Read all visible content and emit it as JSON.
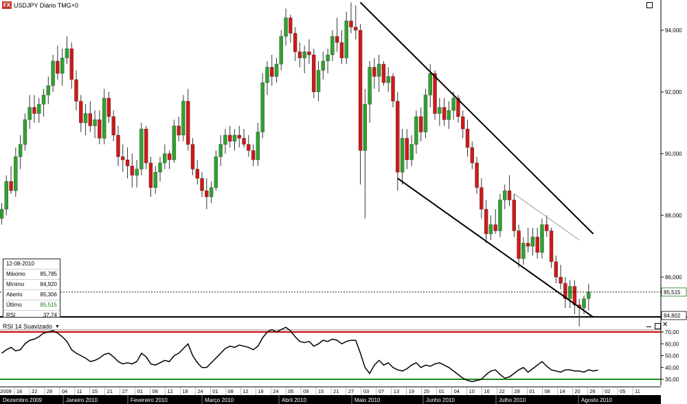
{
  "window": {
    "title": "USDJPY Diário TMG+0",
    "icon": "fx-icon",
    "maximize_icon": "maximize-icon"
  },
  "ohlc_info": {
    "date": "12-08-2010",
    "rows": [
      {
        "label": "Máximo",
        "value": "85,785",
        "color": "#000000"
      },
      {
        "label": "Mínimo",
        "value": "84,920",
        "color": "#000000"
      },
      {
        "label": "Aberto",
        "value": "85,306",
        "color": "#000000"
      },
      {
        "label": "Último",
        "value": "85,515",
        "color": "#1a7a1a"
      },
      {
        "label": "RSI",
        "value": "37,74",
        "color": "#000000"
      }
    ]
  },
  "price_axis": {
    "ticks": [
      "94,000",
      "92,000",
      "90,000",
      "88,000",
      "86,000"
    ],
    "last_price_label": "85,515",
    "low_label": "84,802"
  },
  "rsi_panel": {
    "title": "RSI 14 Suavizado",
    "ticks": [
      "70,00",
      "60,00",
      "50,00",
      "40,00",
      "30,00"
    ],
    "upper_level": 70,
    "lower_level": 30,
    "upper_color": "#cc0000",
    "lower_color": "#1a8a1a"
  },
  "time_axis": {
    "dates": [
      "2009",
      "16",
      "22",
      "29",
      "04",
      "11",
      "15",
      "21",
      "27",
      "01",
      "08",
      "12",
      "18",
      "24",
      "01",
      "08",
      "12",
      "18",
      "24",
      "05",
      "09",
      "15",
      "21",
      "27",
      "03",
      "07",
      "13",
      "19",
      "25",
      "01",
      "04",
      "10",
      "16",
      "22",
      "28",
      "01",
      "08",
      "14",
      "20",
      "26",
      "02",
      "05",
      "11"
    ],
    "months": [
      "Dezembro 2009",
      "Janeiro 2010",
      "Fevereiro 2010",
      "Março 2010",
      "Abril 2010",
      "Maio 2010",
      "Junho 2010",
      "Julho 2010",
      "Agosto 2010"
    ]
  },
  "colors": {
    "bull": "#2fa32f",
    "bear": "#d01818",
    "trendline": "#000000",
    "thin_trendline": "#999999"
  },
  "chart_data": [
    {
      "type": "candlestick",
      "title": "USDJPY Diário TMG+0",
      "x_range": [
        "2009-12-10",
        "2010-08-12"
      ],
      "y_range": [
        84.3,
        95.0
      ],
      "ohlc": [
        [
          87.9,
          88.4,
          87.7,
          88.2
        ],
        [
          88.2,
          89.3,
          88.0,
          89.1
        ],
        [
          89.1,
          89.6,
          88.7,
          88.8
        ],
        [
          88.8,
          90.2,
          88.6,
          89.9
        ],
        [
          89.9,
          90.6,
          89.5,
          90.3
        ],
        [
          90.3,
          91.3,
          90.1,
          91.1
        ],
        [
          91.1,
          91.9,
          90.8,
          91.5
        ],
        [
          91.5,
          91.9,
          91.0,
          91.3
        ],
        [
          91.3,
          91.8,
          91.0,
          91.6
        ],
        [
          91.6,
          92.1,
          91.2,
          91.9
        ],
        [
          91.9,
          92.5,
          91.6,
          92.2
        ],
        [
          92.2,
          93.2,
          92.0,
          93.0
        ],
        [
          93.0,
          93.5,
          92.4,
          92.6
        ],
        [
          92.6,
          93.4,
          92.2,
          93.1
        ],
        [
          93.1,
          93.8,
          92.9,
          93.4
        ],
        [
          93.4,
          93.6,
          92.1,
          92.4
        ],
        [
          92.4,
          92.7,
          91.4,
          91.7
        ],
        [
          91.7,
          91.9,
          90.7,
          91.0
        ],
        [
          91.0,
          91.6,
          90.6,
          91.3
        ],
        [
          91.3,
          91.7,
          90.7,
          90.9
        ],
        [
          90.9,
          91.4,
          90.5,
          91.1
        ],
        [
          91.1,
          91.4,
          90.3,
          90.5
        ],
        [
          90.5,
          92.1,
          90.3,
          91.8
        ],
        [
          91.8,
          92.0,
          91.0,
          91.2
        ],
        [
          91.2,
          91.4,
          90.4,
          90.6
        ],
        [
          90.6,
          90.9,
          89.6,
          89.9
        ],
        [
          89.9,
          90.3,
          89.4,
          89.8
        ],
        [
          89.8,
          90.2,
          89.2,
          89.6
        ],
        [
          89.6,
          90.0,
          88.9,
          89.3
        ],
        [
          89.3,
          89.8,
          88.9,
          89.5
        ],
        [
          89.5,
          91.0,
          89.3,
          90.8
        ],
        [
          90.8,
          90.9,
          89.5,
          89.7
        ],
        [
          89.7,
          89.9,
          88.6,
          88.9
        ],
        [
          88.9,
          89.6,
          88.7,
          89.4
        ],
        [
          89.4,
          89.9,
          89.1,
          89.7
        ],
        [
          89.7,
          90.3,
          89.5,
          90.0
        ],
        [
          90.0,
          90.1,
          89.5,
          89.8
        ],
        [
          89.8,
          91.1,
          89.7,
          90.9
        ],
        [
          90.9,
          91.2,
          90.4,
          90.6
        ],
        [
          90.6,
          91.9,
          90.4,
          91.7
        ],
        [
          91.7,
          92.1,
          90.1,
          90.3
        ],
        [
          90.3,
          90.5,
          89.3,
          89.5
        ],
        [
          89.5,
          89.8,
          89.0,
          89.2
        ],
        [
          89.2,
          89.4,
          88.6,
          88.8
        ],
        [
          88.8,
          89.2,
          88.2,
          88.6
        ],
        [
          88.6,
          89.1,
          88.4,
          88.9
        ],
        [
          88.9,
          90.1,
          88.8,
          89.9
        ],
        [
          89.9,
          90.6,
          89.6,
          90.3
        ],
        [
          90.3,
          90.8,
          90.0,
          90.6
        ],
        [
          90.6,
          90.9,
          90.2,
          90.4
        ],
        [
          90.4,
          90.8,
          90.1,
          90.6
        ],
        [
          90.6,
          90.9,
          90.2,
          90.5
        ],
        [
          90.5,
          90.8,
          90.2,
          90.3
        ],
        [
          90.3,
          90.6,
          89.9,
          90.1
        ],
        [
          90.1,
          90.3,
          89.6,
          89.8
        ],
        [
          89.8,
          91.0,
          89.6,
          90.7
        ],
        [
          90.7,
          92.6,
          90.5,
          92.3
        ],
        [
          92.3,
          93.0,
          91.9,
          92.8
        ],
        [
          92.8,
          93.2,
          92.2,
          92.5
        ],
        [
          92.5,
          93.1,
          92.3,
          92.9
        ],
        [
          92.9,
          94.0,
          92.7,
          93.8
        ],
        [
          93.8,
          94.7,
          93.5,
          94.4
        ],
        [
          94.4,
          94.5,
          93.6,
          93.9
        ],
        [
          93.9,
          94.1,
          93.0,
          93.3
        ],
        [
          93.3,
          93.6,
          92.8,
          93.1
        ],
        [
          93.1,
          93.5,
          92.6,
          93.3
        ],
        [
          93.3,
          93.7,
          92.9,
          93.2
        ],
        [
          93.2,
          93.4,
          91.8,
          92.0
        ],
        [
          92.0,
          93.0,
          91.7,
          92.7
        ],
        [
          92.7,
          93.3,
          92.4,
          93.0
        ],
        [
          93.0,
          93.4,
          92.6,
          93.2
        ],
        [
          93.2,
          94.0,
          93.0,
          93.8
        ],
        [
          93.8,
          94.4,
          93.3,
          93.6
        ],
        [
          93.6,
          94.0,
          92.9,
          93.1
        ],
        [
          93.1,
          94.6,
          92.9,
          94.3
        ],
        [
          94.3,
          94.9,
          93.9,
          94.1
        ],
        [
          94.1,
          94.8,
          93.7,
          94.0
        ],
        [
          94.0,
          94.2,
          89.0,
          90.1
        ],
        [
          90.1,
          92.1,
          87.9,
          91.6
        ],
        [
          91.6,
          93.0,
          91.0,
          92.8
        ],
        [
          92.8,
          93.1,
          92.1,
          92.5
        ],
        [
          92.5,
          93.2,
          92.0,
          92.9
        ],
        [
          92.9,
          93.0,
          92.2,
          92.3
        ],
        [
          92.3,
          92.8,
          92.0,
          92.5
        ],
        [
          92.5,
          92.6,
          91.5,
          91.7
        ],
        [
          91.7,
          92.0,
          88.8,
          89.4
        ],
        [
          89.4,
          90.8,
          89.0,
          90.5
        ],
        [
          90.5,
          90.8,
          89.5,
          89.8
        ],
        [
          89.8,
          90.6,
          89.6,
          90.3
        ],
        [
          90.3,
          91.4,
          90.0,
          91.2
        ],
        [
          91.2,
          91.5,
          90.4,
          90.7
        ],
        [
          90.7,
          92.1,
          90.5,
          91.9
        ],
        [
          91.9,
          92.9,
          91.5,
          92.6
        ],
        [
          92.6,
          92.7,
          91.1,
          91.3
        ],
        [
          91.3,
          91.8,
          90.9,
          91.5
        ],
        [
          91.5,
          91.8,
          90.9,
          91.1
        ],
        [
          91.1,
          91.7,
          90.8,
          91.4
        ],
        [
          91.4,
          92.0,
          91.1,
          91.8
        ],
        [
          91.8,
          91.9,
          91.0,
          91.2
        ],
        [
          91.2,
          91.4,
          90.5,
          90.8
        ],
        [
          90.8,
          91.1,
          89.9,
          90.2
        ],
        [
          90.2,
          90.4,
          89.5,
          89.7
        ],
        [
          89.7,
          89.9,
          88.7,
          88.9
        ],
        [
          88.9,
          89.2,
          87.9,
          88.2
        ],
        [
          88.2,
          88.5,
          87.1,
          87.4
        ],
        [
          87.4,
          88.0,
          87.2,
          87.7
        ],
        [
          87.7,
          88.2,
          87.4,
          87.5
        ],
        [
          87.5,
          88.7,
          87.3,
          88.5
        ],
        [
          88.5,
          89.0,
          88.2,
          88.8
        ],
        [
          88.8,
          89.3,
          88.3,
          88.5
        ],
        [
          88.5,
          88.7,
          87.3,
          87.5
        ],
        [
          87.5,
          87.7,
          86.3,
          86.6
        ],
        [
          86.6,
          87.3,
          86.4,
          87.1
        ],
        [
          87.1,
          87.6,
          86.8,
          87.0
        ],
        [
          87.0,
          87.6,
          86.7,
          87.3
        ],
        [
          87.3,
          87.6,
          86.6,
          86.8
        ],
        [
          86.8,
          87.9,
          86.6,
          87.7
        ],
        [
          87.7,
          88.0,
          87.3,
          87.5
        ],
        [
          87.5,
          87.6,
          86.3,
          86.5
        ],
        [
          86.5,
          86.7,
          85.8,
          86.0
        ],
        [
          86.0,
          86.4,
          85.6,
          85.8
        ],
        [
          85.8,
          86.0,
          85.0,
          85.3
        ],
        [
          85.3,
          85.9,
          85.0,
          85.7
        ],
        [
          85.7,
          85.9,
          84.8,
          85.1
        ],
        [
          85.1,
          85.3,
          84.4,
          85.0
        ],
        [
          85.0,
          85.4,
          84.8,
          85.3
        ],
        [
          85.306,
          85.785,
          84.92,
          85.515
        ]
      ],
      "channel_upper": [
        [
          77,
          94.9
        ],
        [
          127,
          87.4
        ]
      ],
      "channel_lower": [
        [
          85,
          89.2
        ],
        [
          127,
          84.7
        ]
      ],
      "thin_line": [
        [
          110,
          88.7
        ],
        [
          124,
          87.2
        ]
      ]
    },
    {
      "type": "line",
      "title": "RSI 14 Suavizado",
      "y_range": [
        24,
        76
      ],
      "levels": [
        70,
        30
      ],
      "series": [
        {
          "name": "RSI 14 Suavizado",
          "values": [
            52,
            55,
            57,
            54,
            55,
            60,
            63,
            64,
            66,
            69,
            70,
            71,
            69,
            66,
            62,
            55,
            52,
            50,
            48,
            45,
            46,
            48,
            51,
            52,
            49,
            45,
            43,
            44,
            43,
            45,
            52,
            49,
            43,
            42,
            44,
            46,
            45,
            50,
            52,
            56,
            60,
            50,
            44,
            40,
            40,
            44,
            48,
            52,
            56,
            58,
            57,
            59,
            58,
            57,
            55,
            58,
            65,
            70,
            72,
            70,
            72,
            74,
            71,
            66,
            62,
            61,
            62,
            58,
            60,
            63,
            62,
            64,
            63,
            60,
            62,
            63,
            63,
            52,
            40,
            35,
            42,
            46,
            42,
            44,
            40,
            38,
            37,
            39,
            42,
            44,
            40,
            42,
            41,
            43,
            44,
            42,
            40,
            37,
            34,
            31,
            29,
            28,
            29,
            30,
            34,
            37,
            38,
            34,
            31,
            32,
            35,
            38,
            40,
            36,
            39,
            42,
            45,
            41,
            38,
            37,
            36,
            38,
            38,
            37,
            37,
            36,
            38,
            37,
            37.74
          ]
        }
      ]
    }
  ]
}
